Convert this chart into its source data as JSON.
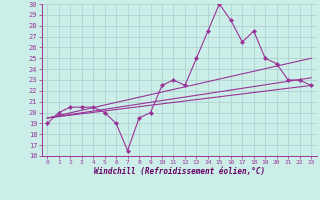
{
  "xlabel": "Windchill (Refroidissement éolien,°C)",
  "xlim": [
    -0.5,
    23.5
  ],
  "ylim": [
    16,
    30
  ],
  "yticks": [
    16,
    17,
    18,
    19,
    20,
    21,
    22,
    23,
    24,
    25,
    26,
    27,
    28,
    29,
    30
  ],
  "xticks": [
    0,
    1,
    2,
    3,
    4,
    5,
    6,
    7,
    8,
    9,
    10,
    11,
    12,
    13,
    14,
    15,
    16,
    17,
    18,
    19,
    20,
    21,
    22,
    23
  ],
  "background_color": "#cceee8",
  "grid_color": "#aacccc",
  "line_color": "#993399",
  "series": {
    "main": {
      "x": [
        0,
        1,
        2,
        3,
        4,
        5,
        6,
        7,
        8,
        9,
        10,
        11,
        12,
        13,
        14,
        15,
        16,
        17,
        18,
        19,
        20,
        21,
        22,
        23
      ],
      "y": [
        19.0,
        20.0,
        20.5,
        20.5,
        20.5,
        20.0,
        19.0,
        16.5,
        19.5,
        20.0,
        22.5,
        23.0,
        22.5,
        25.0,
        27.5,
        30.0,
        28.5,
        26.5,
        27.5,
        25.0,
        24.5,
        23.0,
        23.0,
        22.5
      ]
    },
    "line1": {
      "x": [
        0,
        23
      ],
      "y": [
        19.5,
        22.5
      ]
    },
    "line2": {
      "x": [
        0,
        23
      ],
      "y": [
        19.5,
        23.2
      ]
    },
    "line3": {
      "x": [
        0,
        23
      ],
      "y": [
        19.5,
        25.0
      ]
    }
  }
}
